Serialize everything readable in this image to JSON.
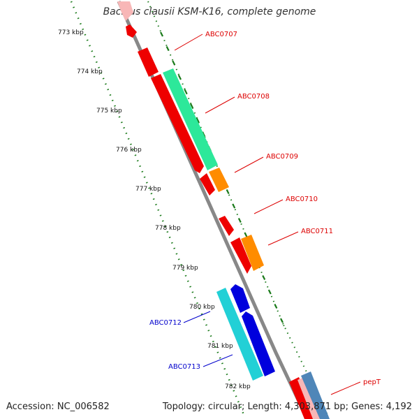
{
  "title": "Bacillus clausii KSM-K16, complete genome",
  "accession": "Accession: NC_006582",
  "summary": "Topology: circular; Length: 4,303,871 bp; Genes: 4,192",
  "ruler": {
    "labels": [
      "773 kbp",
      "774 kbp",
      "775 kbp",
      "776 kbp",
      "777 kbp",
      "778 kbp",
      "779 kbp",
      "780 kbp",
      "781 kbp",
      "782 kbp"
    ]
  },
  "genes": [
    {
      "label": "ABC0707",
      "color": "#dd0000",
      "strand": "forward"
    },
    {
      "label": "ABC0708",
      "color": "#dd0000",
      "strand": "forward"
    },
    {
      "label": "ABC0709",
      "color": "#dd0000",
      "strand": "forward"
    },
    {
      "label": "ABC0710",
      "color": "#dd0000",
      "strand": "forward"
    },
    {
      "label": "ABC0711",
      "color": "#dd0000",
      "strand": "forward"
    },
    {
      "label": "ABC0712",
      "color": "#0000cc",
      "strand": "reverse"
    },
    {
      "label": "ABC0713",
      "color": "#0000cc",
      "strand": "reverse"
    },
    {
      "label": "pepT",
      "color": "#dd0000",
      "strand": "forward"
    }
  ],
  "colors": {
    "backbone": "#888888",
    "tick": "#1a7a1a",
    "cds_forward": "#ee0000",
    "cds_reverse": "#0000dd",
    "cog_green": "#2de89a",
    "cog_orange": "#ff8c00",
    "cog_cyan": "#22d0d6",
    "cog_steel": "#4f86b8",
    "faded_red": "#f8b7b7"
  }
}
